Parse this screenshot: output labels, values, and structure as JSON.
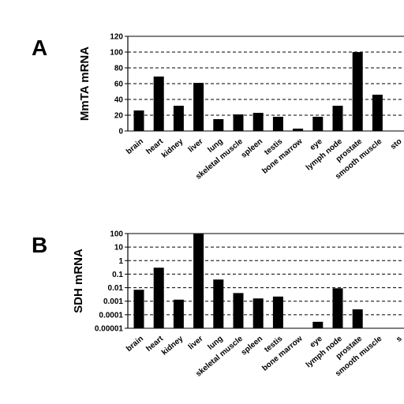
{
  "chart_data": [
    {
      "panel": "A",
      "type": "bar",
      "ylabel": "MmTA mRNA",
      "xlabel": "",
      "ylim": [
        0,
        120
      ],
      "yticks": [
        0,
        20,
        40,
        60,
        80,
        100,
        120
      ],
      "grid": "dashed horizontal at major ticks",
      "categories": [
        "brain",
        "heart",
        "kidney",
        "liver",
        "lung",
        "skeletal muscle",
        "spleen",
        "testis",
        "bone marrow",
        "eye",
        "lymph node",
        "prostate",
        "smooth muscle",
        "sto"
      ],
      "values": [
        26,
        69,
        32,
        61,
        15,
        21,
        23,
        18,
        3,
        18,
        32,
        100,
        46,
        null
      ]
    },
    {
      "panel": "B",
      "type": "bar",
      "ylabel": "SDH mRNA",
      "xlabel": "",
      "yscale": "log",
      "ylim": [
        1e-05,
        100
      ],
      "yticks": [
        "0.00001",
        "0.0001",
        "0.001",
        "0.01",
        "0.1",
        "1",
        "10",
        "100"
      ],
      "grid": "dashed horizontal at major ticks",
      "categories": [
        "brain",
        "heart",
        "kidney",
        "liver",
        "lung",
        "skeletal muscle",
        "spleen",
        "testis",
        "bone marrow",
        "eye",
        "lymph node",
        "prostate",
        "smooth muscle",
        "s"
      ],
      "values": [
        0.007,
        0.3,
        0.0013,
        100,
        0.04,
        0.004,
        0.0016,
        0.0022,
        null,
        3e-05,
        0.009,
        0.00025,
        null,
        null
      ]
    }
  ]
}
